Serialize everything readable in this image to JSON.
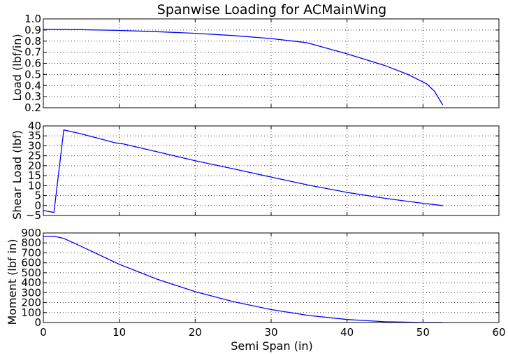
{
  "figure": {
    "title": "Spanwise Loading for ACMainWing",
    "xlabel": "Semi Span (in)",
    "series_color": "#0000ff"
  },
  "chart_data": [
    {
      "type": "line",
      "id": "load",
      "title": "Spanwise Loading for ACMainWing",
      "xlabel": "",
      "ylabel": "Load (lbf/in)",
      "xlim": [
        0,
        60
      ],
      "ylim": [
        0.2,
        1.0
      ],
      "xticks": [
        0,
        10,
        20,
        30,
        40,
        50,
        60
      ],
      "yticks": [
        0.2,
        0.3,
        0.4,
        0.5,
        0.6,
        0.7,
        0.8,
        0.9,
        1.0
      ],
      "ytick_labels": [
        "0.2",
        "0.3",
        "0.4",
        "0.5",
        "0.6",
        "0.7",
        "0.8",
        "0.9",
        "1.0"
      ],
      "grid": true,
      "x": [
        0,
        2,
        5,
        10,
        15,
        20,
        25,
        30,
        34.5,
        35,
        40,
        45,
        48,
        50.5,
        51.5,
        52.6
      ],
      "y": [
        0.905,
        0.905,
        0.903,
        0.896,
        0.885,
        0.87,
        0.85,
        0.823,
        0.788,
        0.78,
        0.685,
        0.58,
        0.5,
        0.415,
        0.35,
        0.225
      ]
    },
    {
      "type": "line",
      "id": "shear",
      "title": "",
      "xlabel": "",
      "ylabel": "Shear Load (lbf)",
      "xlim": [
        0,
        60
      ],
      "ylim": [
        -5,
        40
      ],
      "xticks": [
        0,
        10,
        20,
        30,
        40,
        50,
        60
      ],
      "yticks": [
        -5,
        0,
        5,
        10,
        15,
        20,
        25,
        30,
        35,
        40
      ],
      "ytick_labels": [
        "−5",
        "0",
        "5",
        "10",
        "15",
        "20",
        "25",
        "30",
        "35",
        "40"
      ],
      "grid": true,
      "x": [
        0,
        1.4,
        2.7,
        5,
        8,
        9.5,
        10.5,
        15,
        20,
        25,
        30,
        35,
        40,
        45,
        50,
        52.6
      ],
      "y": [
        -2.5,
        -3.5,
        38.0,
        36.0,
        33.0,
        31.5,
        31.0,
        27.0,
        22.5,
        18.5,
        14.3,
        10.2,
        6.6,
        3.6,
        1.1,
        0.0
      ]
    },
    {
      "type": "line",
      "id": "moment",
      "title": "",
      "xlabel": "Semi Span (in)",
      "ylabel": "Moment (lbf in)",
      "xlim": [
        0,
        60
      ],
      "ylim": [
        0,
        900
      ],
      "xticks": [
        0,
        10,
        20,
        30,
        40,
        50,
        60
      ],
      "yticks": [
        0,
        100,
        200,
        300,
        400,
        500,
        600,
        700,
        800,
        900
      ],
      "ytick_labels": [
        "0",
        "100",
        "200",
        "300",
        "400",
        "500",
        "600",
        "700",
        "800",
        "900"
      ],
      "grid": true,
      "x": [
        0,
        1.4,
        2.7,
        5,
        10,
        15,
        20,
        25,
        30,
        35,
        40,
        45,
        50,
        52.6
      ],
      "y": [
        865,
        868,
        845,
        765,
        585,
        435,
        310,
        210,
        130,
        70,
        30,
        8,
        1,
        0
      ]
    }
  ]
}
